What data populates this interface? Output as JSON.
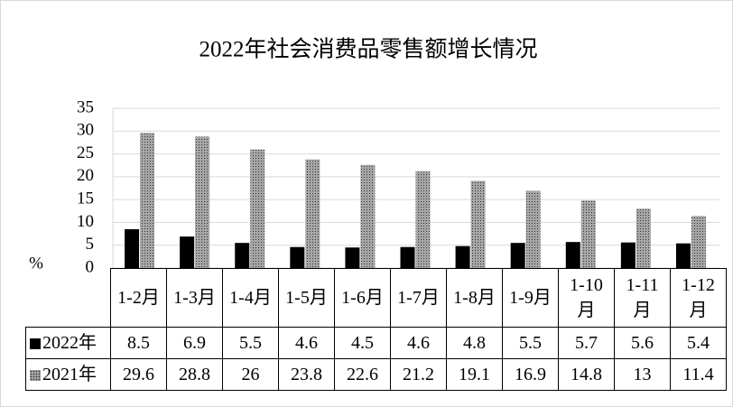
{
  "chart_data": {
    "type": "bar",
    "title": "2022年社会消费品零售额增长情况",
    "y_unit": "%",
    "categories": [
      "1-2月",
      "1-3月",
      "1-4月",
      "1-5月",
      "1-6月",
      "1-7月",
      "1-8月",
      "1-9月",
      "1-10月",
      "1-11月",
      "1-12月"
    ],
    "series": [
      {
        "name": "2022年",
        "color": "#000000",
        "values": [
          8.5,
          6.9,
          5.5,
          4.6,
          4.5,
          4.6,
          4.8,
          5.5,
          5.7,
          5.6,
          5.4
        ]
      },
      {
        "name": "2021年",
        "color": "#8c8c8c",
        "fill_pattern": "dots",
        "values": [
          29.6,
          28.8,
          26,
          23.8,
          22.6,
          21.2,
          19.1,
          16.9,
          14.8,
          13,
          11.4
        ]
      }
    ],
    "ylim": [
      0,
      35
    ],
    "yticks": [
      0,
      5,
      10,
      15,
      20,
      25,
      30,
      35
    ],
    "grid": true
  }
}
